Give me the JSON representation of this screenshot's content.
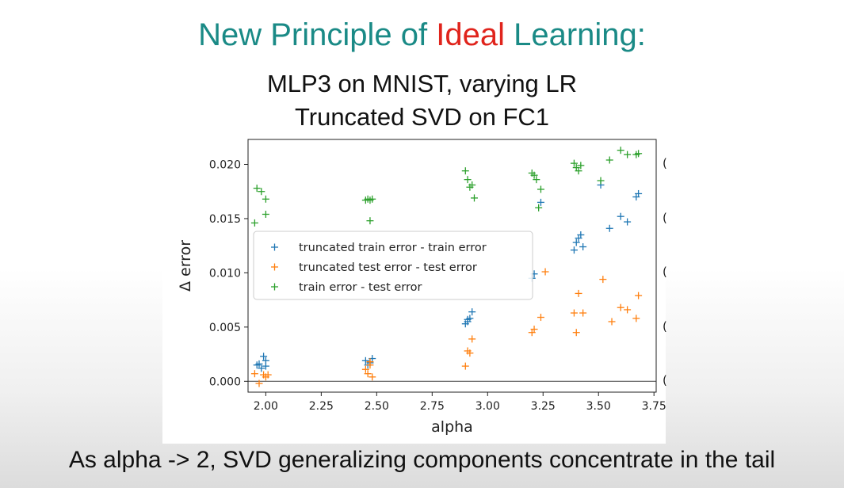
{
  "slide": {
    "title_before": "New Principle of ",
    "title_highlight": "Ideal",
    "title_after": " Learning:",
    "subtitle_line1": "MLP3 on MNIST, varying LR",
    "subtitle_line2": "Truncated SVD on FC1",
    "caption": "As alpha -> 2,  SVD generalizing components concentrate in the tail",
    "edge_marks": [
      "(",
      "(",
      "(",
      "(",
      "("
    ]
  },
  "colors": {
    "title": "#1a8a86",
    "highlight": "#e0241c",
    "train_series": "#1f77b4",
    "test_series": "#ff7f0e",
    "gap_series": "#2ca02c"
  },
  "chart_data": {
    "type": "scatter",
    "xlabel": "alpha",
    "ylabel": "Δ error",
    "xlim": [
      1.92,
      3.76
    ],
    "ylim": [
      -0.001,
      0.0223
    ],
    "xticks": [
      "2.00",
      "2.25",
      "2.50",
      "2.75",
      "3.00",
      "3.25",
      "3.50",
      "3.75"
    ],
    "xtick_values": [
      2.0,
      2.25,
      2.5,
      2.75,
      3.0,
      3.25,
      3.5,
      3.75
    ],
    "yticks": [
      "0.000",
      "0.005",
      "0.010",
      "0.015",
      "0.020"
    ],
    "ytick_values": [
      0.0,
      0.005,
      0.01,
      0.015,
      0.02
    ],
    "reference_line_y": 0.0,
    "grid": false,
    "legend_position": "center-left",
    "marker": "+",
    "series": [
      {
        "name": "truncated train error - train error",
        "color": "#1f77b4",
        "points": [
          [
            1.96,
            0.0015
          ],
          [
            1.98,
            0.0012
          ],
          [
            1.99,
            0.0023
          ],
          [
            2.0,
            0.0014
          ],
          [
            1.97,
            0.0016
          ],
          [
            2.0,
            0.0019
          ],
          [
            2.45,
            0.0019
          ],
          [
            2.47,
            0.0017
          ],
          [
            2.48,
            0.0021
          ],
          [
            2.46,
            0.0015
          ],
          [
            2.9,
            0.0053
          ],
          [
            2.91,
            0.0057
          ],
          [
            2.92,
            0.0058
          ],
          [
            2.93,
            0.0064
          ],
          [
            2.91,
            0.0055
          ],
          [
            3.2,
            0.0095
          ],
          [
            3.21,
            0.0099
          ],
          [
            3.24,
            0.0165
          ],
          [
            3.39,
            0.0121
          ],
          [
            3.4,
            0.0128
          ],
          [
            3.41,
            0.0132
          ],
          [
            3.42,
            0.0135
          ],
          [
            3.43,
            0.0124
          ],
          [
            3.51,
            0.0181
          ],
          [
            3.55,
            0.0141
          ],
          [
            3.6,
            0.0152
          ],
          [
            3.63,
            0.0147
          ],
          [
            3.67,
            0.017
          ],
          [
            3.68,
            0.0173
          ]
        ]
      },
      {
        "name": "truncated test error - test error",
        "color": "#ff7f0e",
        "points": [
          [
            1.95,
            0.0007
          ],
          [
            1.97,
            -0.0002
          ],
          [
            1.99,
            0.0006
          ],
          [
            2.0,
            0.0004
          ],
          [
            2.01,
            0.0006
          ],
          [
            2.45,
            0.0011
          ],
          [
            2.46,
            0.0007
          ],
          [
            2.47,
            0.0015
          ],
          [
            2.48,
            0.0004
          ],
          [
            2.47,
            0.0018
          ],
          [
            2.9,
            0.0014
          ],
          [
            2.91,
            0.0028
          ],
          [
            2.92,
            0.0026
          ],
          [
            2.93,
            0.0039
          ],
          [
            3.2,
            0.0045
          ],
          [
            3.21,
            0.0048
          ],
          [
            3.24,
            0.0059
          ],
          [
            3.26,
            0.0101
          ],
          [
            3.39,
            0.0063
          ],
          [
            3.41,
            0.0081
          ],
          [
            3.43,
            0.0063
          ],
          [
            3.4,
            0.0045
          ],
          [
            3.52,
            0.0094
          ],
          [
            3.56,
            0.0055
          ],
          [
            3.6,
            0.0068
          ],
          [
            3.63,
            0.0066
          ],
          [
            3.67,
            0.0058
          ],
          [
            3.68,
            0.0079
          ]
        ]
      },
      {
        "name": "train error - test error",
        "color": "#2ca02c",
        "points": [
          [
            1.95,
            0.0146
          ],
          [
            1.96,
            0.0178
          ],
          [
            1.98,
            0.0175
          ],
          [
            2.0,
            0.0168
          ],
          [
            2.0,
            0.0154
          ],
          [
            2.45,
            0.0167
          ],
          [
            2.46,
            0.0168
          ],
          [
            2.47,
            0.0167
          ],
          [
            2.48,
            0.0168
          ],
          [
            2.47,
            0.0148
          ],
          [
            2.9,
            0.0194
          ],
          [
            2.91,
            0.0186
          ],
          [
            2.92,
            0.0179
          ],
          [
            2.93,
            0.0181
          ],
          [
            2.94,
            0.0169
          ],
          [
            3.2,
            0.0192
          ],
          [
            3.21,
            0.019
          ],
          [
            3.22,
            0.0186
          ],
          [
            3.24,
            0.0177
          ],
          [
            3.23,
            0.016
          ],
          [
            3.39,
            0.0201
          ],
          [
            3.4,
            0.0197
          ],
          [
            3.41,
            0.0194
          ],
          [
            3.42,
            0.0199
          ],
          [
            3.51,
            0.0185
          ],
          [
            3.55,
            0.0204
          ],
          [
            3.6,
            0.0213
          ],
          [
            3.63,
            0.0209
          ],
          [
            3.67,
            0.0209
          ],
          [
            3.68,
            0.021
          ]
        ]
      }
    ]
  }
}
